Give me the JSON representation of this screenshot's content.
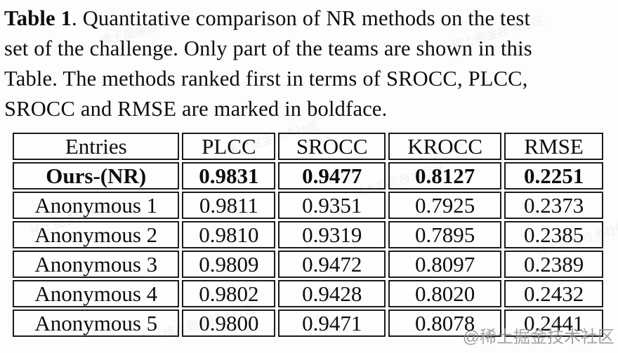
{
  "caption": {
    "label": "Table 1",
    "lines": [
      ". Quantitative comparison of NR methods on the test",
      "set of the challenge. Only part of the teams are shown in this",
      "Table. The methods ranked first in terms of SROCC, PLCC,",
      "SROCC and RMSE are marked in boldface."
    ]
  },
  "chart_data": {
    "type": "table",
    "title": "Table 1. Quantitative comparison of NR methods on the test set of the challenge.",
    "columns": [
      "Entries",
      "PLCC",
      "SROCC",
      "KROCC",
      "RMSE"
    ],
    "rows": [
      {
        "cells": [
          "Ours-(NR)",
          "0.9831",
          "0.9477",
          "0.8127",
          "0.2251"
        ],
        "bold": true
      },
      {
        "cells": [
          "Anonymous 1",
          "0.9811",
          "0.9351",
          "0.7925",
          "0.2373"
        ],
        "bold": false
      },
      {
        "cells": [
          "Anonymous 2",
          "0.9810",
          "0.9319",
          "0.7895",
          "0.2385"
        ],
        "bold": false
      },
      {
        "cells": [
          "Anonymous 3",
          "0.9809",
          "0.9472",
          "0.8097",
          "0.2389"
        ],
        "bold": false
      },
      {
        "cells": [
          "Anonymous 4",
          "0.9802",
          "0.9428",
          "0.8020",
          "0.2432"
        ],
        "bold": false
      },
      {
        "cells": [
          "Anonymous 5",
          "0.9800",
          "0.9471",
          "0.8078",
          "0.2441"
        ],
        "bold": false
      }
    ]
  },
  "watermark": {
    "main": "@稀土掘金技术社区",
    "faint": "稀土掘金技术社区"
  }
}
